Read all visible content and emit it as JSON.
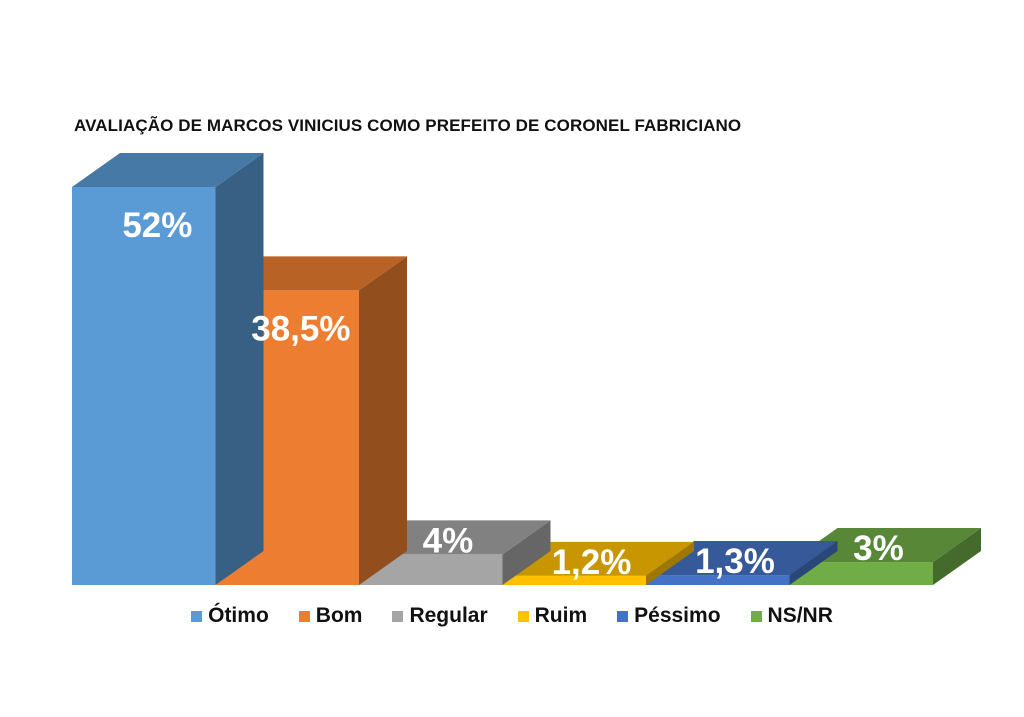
{
  "chart_data": {
    "type": "bar",
    "title": "AVALIAÇÃO DE MARCOS VINICIUS COMO PREFEITO DE CORONEL FABRICIANO",
    "categories": [
      "Ótimo",
      "Bom",
      "Regular",
      "Ruim",
      "Péssimo",
      "NS/NR"
    ],
    "values": [
      52,
      38.5,
      4,
      1.2,
      1.3,
      3
    ],
    "labels": [
      "52%",
      "38,5%",
      "4%",
      "1,2%",
      "1,3%",
      "3%"
    ],
    "colors": [
      "#5b9bd5",
      "#ed7d31",
      "#a5a5a5",
      "#ffc000",
      "#4472c4",
      "#70ad47"
    ],
    "style": "3d-columns",
    "grid": false,
    "legend_position": "bottom"
  }
}
